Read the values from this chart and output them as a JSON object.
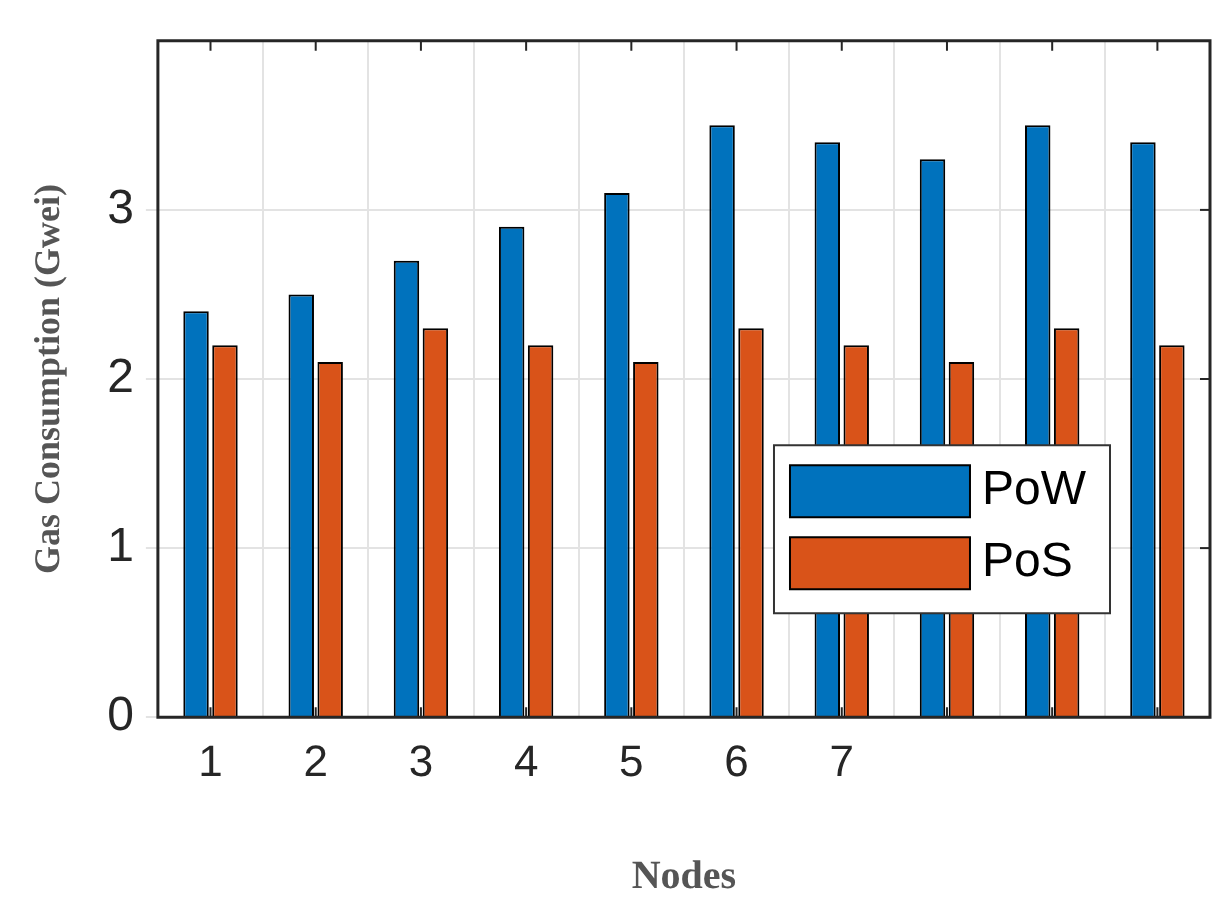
{
  "chart_data": {
    "type": "bar",
    "xlabel": "Nodes",
    "ylabel": "Gas Consumption (Gwei)",
    "categories": [
      "1",
      "2",
      "3",
      "4",
      "5",
      "6",
      "7",
      null,
      null,
      null
    ],
    "series": [
      {
        "name": "PoW",
        "color": "#0072bd",
        "values": [
          2.4,
          2.5,
          2.7,
          2.9,
          3.1,
          3.5,
          3.4,
          3.3,
          3.5,
          3.4
        ]
      },
      {
        "name": "PoS",
        "color": "#d95319",
        "values": [
          2.2,
          2.1,
          2.3,
          2.2,
          2.1,
          2.3,
          2.2,
          2.1,
          2.3,
          2.2
        ]
      }
    ],
    "ylim": [
      0,
      4
    ],
    "yticks": [
      0,
      1,
      2,
      3
    ],
    "grid": true,
    "legend": "right"
  }
}
